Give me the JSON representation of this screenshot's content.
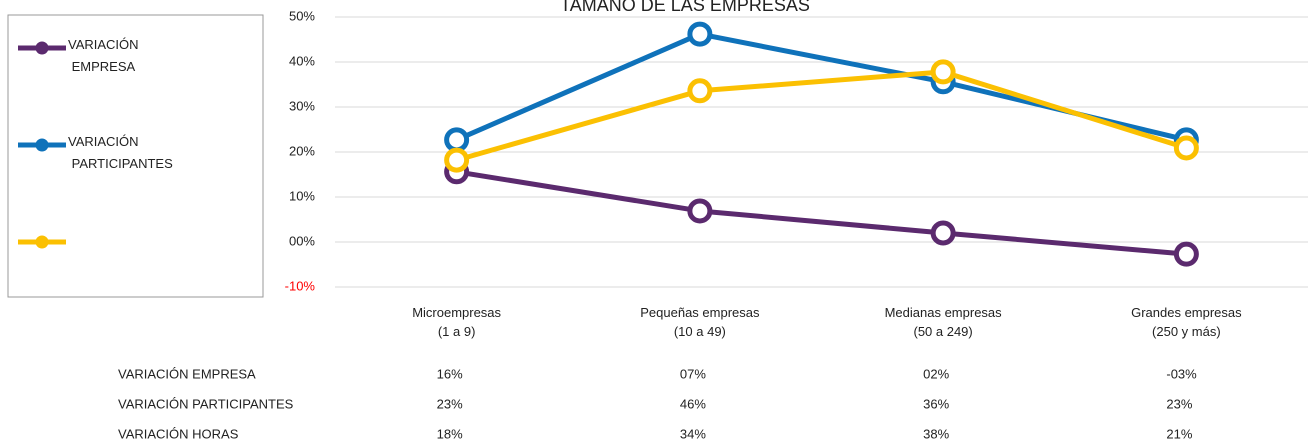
{
  "chart_data": {
    "type": "line",
    "title": "TAMAÑO DE LAS EMPRESAS",
    "categories": [
      "Microempresas\n(1 a 9)",
      "Pequeñas empresas\n(10 a 49)",
      "Medianas empresas\n(50 a 249)",
      "Grandes empresas\n(250 y más)"
    ],
    "series": [
      {
        "name": "VARIACIÓN EMPRESA",
        "color": "#5b2a6e",
        "values": [
          15.6,
          6.9,
          2.0,
          -2.7
        ],
        "value_labels": [
          "16%",
          "07%",
          "02%",
          "-03%"
        ]
      },
      {
        "name": "VARIACIÓN PARTICIPANTES",
        "color": "#0f72ba",
        "values": [
          22.7,
          46.2,
          35.6,
          22.7
        ],
        "value_labels": [
          "23%",
          "46%",
          "36%",
          "23%"
        ]
      },
      {
        "name": "VARIACIÓN HORAS",
        "color": "#fbc002",
        "values": [
          18.2,
          33.6,
          37.8,
          20.9
        ],
        "value_labels": [
          "18%",
          "34%",
          "38%",
          "21%"
        ]
      }
    ],
    "ylim": [
      -10,
      50
    ],
    "yticks": [
      {
        "value": -10,
        "label": "-10%"
      },
      {
        "value": 0,
        "label": "00%"
      },
      {
        "value": 10,
        "label": "10%"
      },
      {
        "value": 20,
        "label": "20%"
      },
      {
        "value": 30,
        "label": "30%"
      },
      {
        "value": 40,
        "label": "40%"
      },
      {
        "value": 50,
        "label": "50%"
      }
    ],
    "negative_tick_color": "#ff0000",
    "grid": true,
    "legend": "left",
    "data_table": true
  }
}
